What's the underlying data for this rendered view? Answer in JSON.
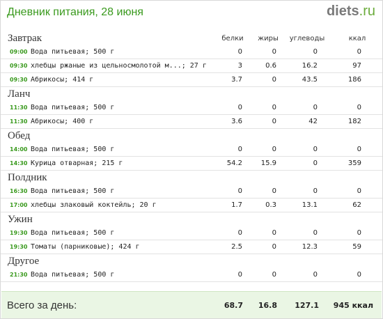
{
  "header": {
    "title": "Дневник питания, 28 июня",
    "logo_main": "diets",
    "logo_tld": ".ru"
  },
  "columns": {
    "protein": "белки",
    "fat": "жиры",
    "carbs": "углеводы",
    "kcal": "ккал"
  },
  "meals": [
    {
      "name": "Завтрак",
      "items": [
        {
          "time": "09:00",
          "food": "Вода питьевая; 500 г",
          "protein": "0",
          "fat": "0",
          "carbs": "0",
          "kcal": "0"
        },
        {
          "time": "09:30",
          "food": "хлебцы ржаные из цельносмолотой м...; 27 г",
          "protein": "3",
          "fat": "0.6",
          "carbs": "16.2",
          "kcal": "97"
        },
        {
          "time": "09:30",
          "food": "Абрикосы; 414 г",
          "protein": "3.7",
          "fat": "0",
          "carbs": "43.5",
          "kcal": "186"
        }
      ]
    },
    {
      "name": "Ланч",
      "items": [
        {
          "time": "11:30",
          "food": "Вода питьевая; 500 г",
          "protein": "0",
          "fat": "0",
          "carbs": "0",
          "kcal": "0"
        },
        {
          "time": "11:30",
          "food": "Абрикосы; 400 г",
          "protein": "3.6",
          "fat": "0",
          "carbs": "42",
          "kcal": "182"
        }
      ]
    },
    {
      "name": "Обед",
      "items": [
        {
          "time": "14:00",
          "food": "Вода питьевая; 500 г",
          "protein": "0",
          "fat": "0",
          "carbs": "0",
          "kcal": "0"
        },
        {
          "time": "14:30",
          "food": "Курица отварная; 215 г",
          "protein": "54.2",
          "fat": "15.9",
          "carbs": "0",
          "kcal": "359"
        }
      ]
    },
    {
      "name": "Полдник",
      "items": [
        {
          "time": "16:30",
          "food": "Вода питьевая; 500 г",
          "protein": "0",
          "fat": "0",
          "carbs": "0",
          "kcal": "0"
        },
        {
          "time": "17:00",
          "food": "хлебцы злаковый коктейль; 20 г",
          "protein": "1.7",
          "fat": "0.3",
          "carbs": "13.1",
          "kcal": "62"
        }
      ]
    },
    {
      "name": "Ужин",
      "items": [
        {
          "time": "19:30",
          "food": "Вода питьевая; 500 г",
          "protein": "0",
          "fat": "0",
          "carbs": "0",
          "kcal": "0"
        },
        {
          "time": "19:30",
          "food": "Томаты (парниковые); 424 г",
          "protein": "2.5",
          "fat": "0",
          "carbs": "12.3",
          "kcal": "59"
        }
      ]
    },
    {
      "name": "Другое",
      "items": [
        {
          "time": "21:30",
          "food": "Вода питьевая; 500 г",
          "protein": "0",
          "fat": "0",
          "carbs": "0",
          "kcal": "0"
        }
      ]
    }
  ],
  "footer": {
    "label": "Всего за день:",
    "protein": "68.7",
    "fat": "16.8",
    "carbs": "127.1",
    "kcal": "945 ккал"
  }
}
